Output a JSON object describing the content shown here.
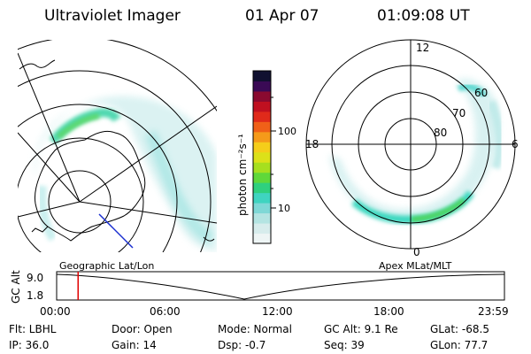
{
  "header": {
    "instrument": "Ultraviolet Imager",
    "date": "01 Apr 07",
    "time": "01:09:08 UT"
  },
  "geo_map": {
    "caption": "Geographic Lat/Lon"
  },
  "colorbar": {
    "unit_label": "photon cm⁻²s⁻¹",
    "ticks": [
      "100",
      "10"
    ],
    "colors": [
      "#eef5f5",
      "#d7ecec",
      "#b4e4e2",
      "#7fd8d6",
      "#3fd4c0",
      "#2fd07e",
      "#5fd83a",
      "#a6df1f",
      "#dce119",
      "#f5cd1a",
      "#f59a1a",
      "#f06018",
      "#e02a1a",
      "#c01020",
      "#8a0a30",
      "#3a0a55",
      "#101030"
    ]
  },
  "polar_map": {
    "caption": "Apex MLat/MLT",
    "mlt_labels": {
      "top": "12",
      "bottom": "0",
      "left": "18",
      "right": "6"
    },
    "lat_labels": [
      "60",
      "70",
      "80"
    ]
  },
  "timeline": {
    "ylabel": "GC Alt",
    "yticks": [
      "9.0",
      "1.8"
    ],
    "xticks": [
      "00:00",
      "06:00",
      "12:00",
      "18:00",
      "23:59"
    ],
    "marker_time_hours": 1.15,
    "marker_color": "#e00000"
  },
  "info": {
    "filter": "Flt: LBHL",
    "ip": "IP: 36.0",
    "door": "Door: Open",
    "gain": "Gain: 14",
    "mode": "Mode: Normal",
    "dsp": "Dsp:   -0.7",
    "gc_alt": "GC Alt: 9.1 Re",
    "seq": "Seq: 39",
    "glat": "GLat: -68.5",
    "glon": "GLon:  77.7"
  }
}
